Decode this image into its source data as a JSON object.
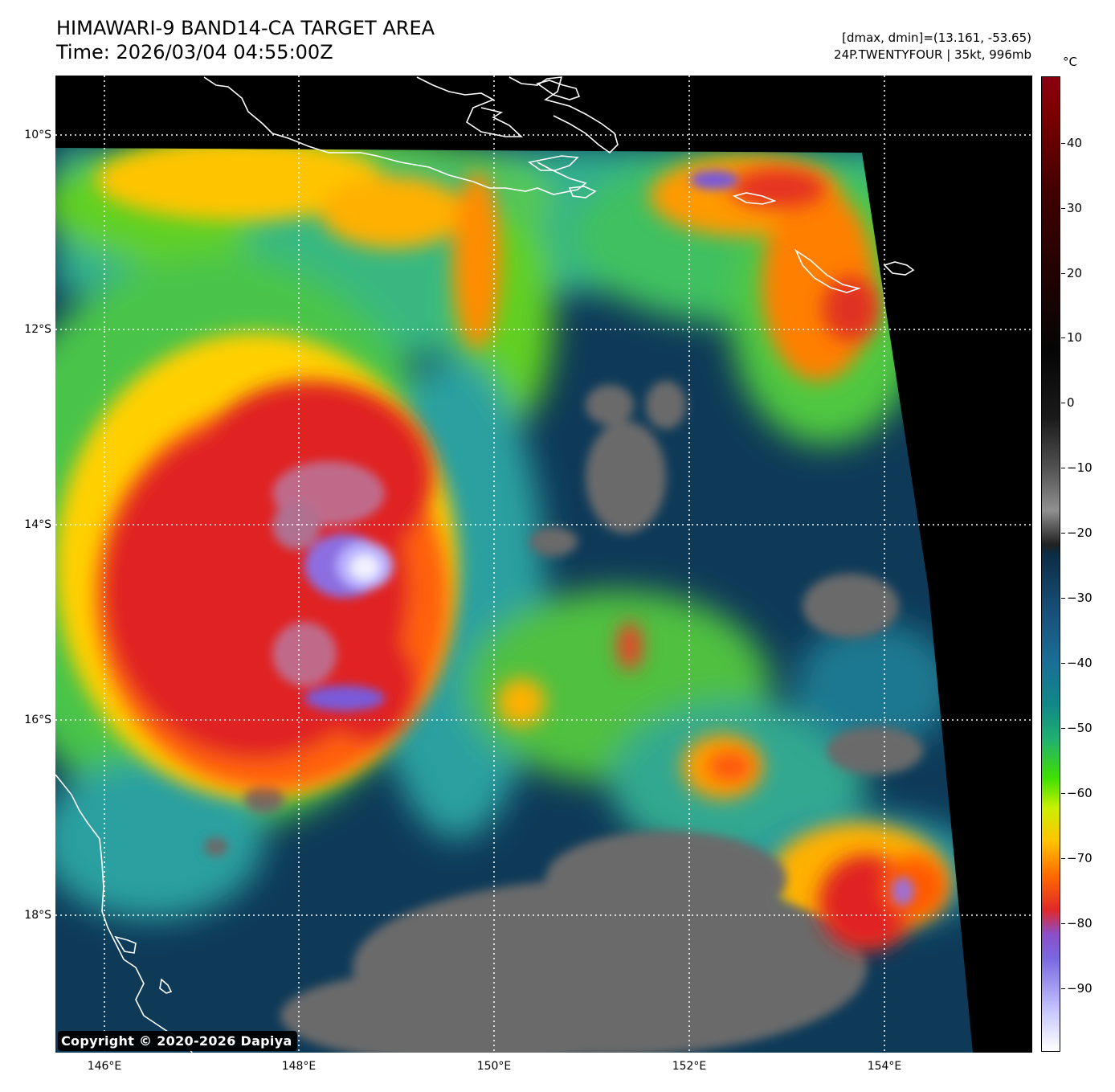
{
  "header": {
    "title_line1": "HIMAWARI-9 BAND14-CA TARGET AREA",
    "title_line2": "Time: 2026/03/04 04:55:00Z",
    "dmax_dmin": "[dmax, dmin]=(13.161, -53.65)",
    "storm": "24P.TWENTYFOUR | 35kt, 996mb"
  },
  "map": {
    "lat_labels": [
      "10°S",
      "12°S",
      "14°S",
      "16°S",
      "18°S"
    ],
    "lon_labels": [
      "146°E",
      "148°E",
      "150°E",
      "152°E",
      "154°E"
    ],
    "copyright": "Copyright © 2020-2026 Dapiya"
  },
  "colorbar": {
    "unit": "°C",
    "ticks": [
      "40",
      "30",
      "20",
      "10",
      "0",
      "−10",
      "−20",
      "−30",
      "−40",
      "−50",
      "−60",
      "−70",
      "−80",
      "−90"
    ]
  },
  "colors": {
    "deep_convection": "#e02020",
    "coldest_tops": "#8c6ee0",
    "mid_cloud": "#40d020",
    "clear_ocean": "#0e3a5a",
    "land_warm": "#6a6a6a"
  }
}
